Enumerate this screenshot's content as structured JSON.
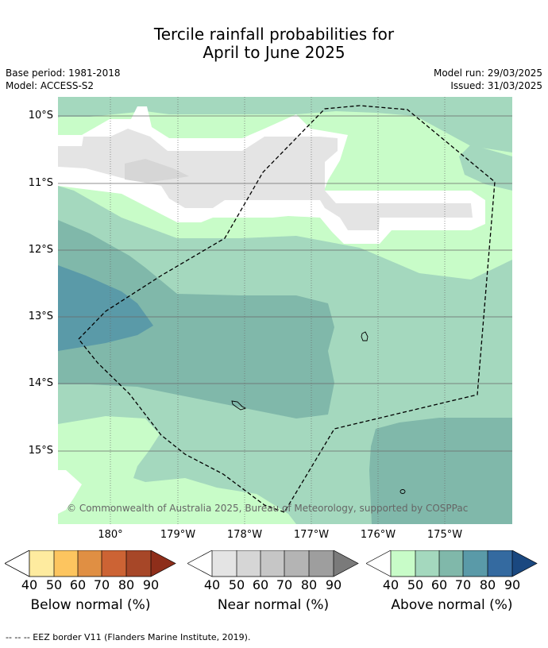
{
  "title_line1": "Tercile rainfall probabilities for",
  "title_line2": "April to June 2025",
  "meta": {
    "base_period": "Base period: 1981-2018",
    "model": "Model: ACCESS-S2",
    "model_run": "Model run: 29/03/2025",
    "issued": "Issued: 31/03/2025"
  },
  "map": {
    "lat_labels": [
      "10°S",
      "11°S",
      "12°S",
      "13°S",
      "14°S",
      "15°S"
    ],
    "lon_labels": [
      "180°",
      "179°W",
      "178°W",
      "177°W",
      "176°W",
      "175°W"
    ],
    "credit": "© Commonwealth of Australia 2025, Bureau of Meteorology, supported by COSPPac"
  },
  "colorbars": [
    {
      "caption": "Below normal (%)",
      "ticks": [
        "40",
        "50",
        "60",
        "70",
        "80",
        "90"
      ],
      "colors": [
        "#ffffff",
        "#feeb9f",
        "#fdc55f",
        "#e08f43",
        "#cc6334",
        "#a74728",
        "#8e2e1a"
      ]
    },
    {
      "caption": "Near normal (%)",
      "ticks": [
        "40",
        "50",
        "60",
        "70",
        "80",
        "90"
      ],
      "colors": [
        "#ffffff",
        "#e4e4e4",
        "#d6d6d6",
        "#c6c6c6",
        "#b4b4b4",
        "#9e9e9e",
        "#7a7a7a"
      ]
    },
    {
      "caption": "Above normal (%)",
      "ticks": [
        "40",
        "50",
        "60",
        "70",
        "80",
        "90"
      ],
      "colors": [
        "#ffffff",
        "#c8fcc8",
        "#a4d8be",
        "#80b8aa",
        "#5a9aa8",
        "#346aa0",
        "#1a4880"
      ]
    }
  ],
  "footer": "--  --  -- EEZ border V11 (Flanders Marine Institute, 2019)."
}
